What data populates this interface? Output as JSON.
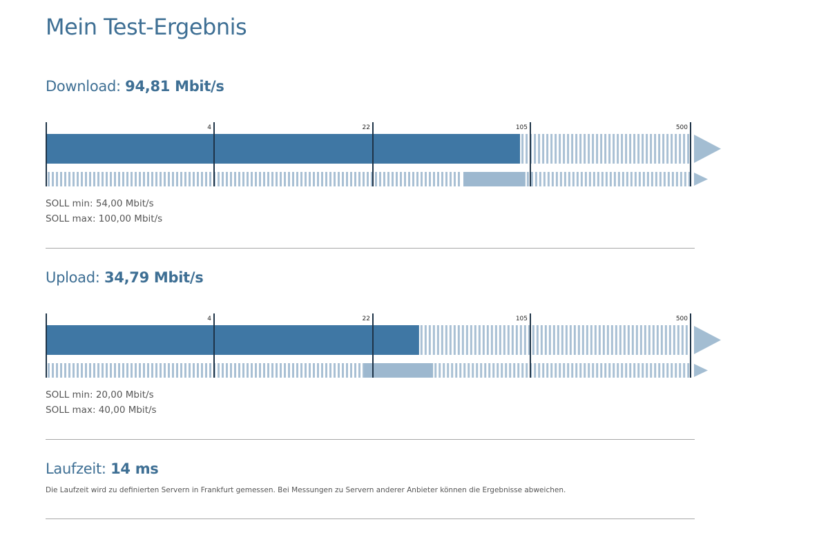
{
  "title": "Mein Test-Ergebnis",
  "download": {
    "label": "Download:",
    "value": "94,81 Mbit/s",
    "speed_mbit": 94.81,
    "soll_min_mbit": 54,
    "soll_max_mbit": 100,
    "soll_min_text": "SOLL min: 54,00 Mbit/s",
    "soll_max_text": "SOLL max: 100,00 Mbit/s",
    "ticks": [
      "4",
      "22",
      "105",
      "500"
    ]
  },
  "upload": {
    "label": "Upload:",
    "value": "34,79 Mbit/s",
    "speed_mbit": 34.79,
    "soll_min_mbit": 20,
    "soll_max_mbit": 40,
    "soll_min_text": "SOLL min: 20,00 Mbit/s",
    "soll_max_text": "SOLL max: 40,00 Mbit/s",
    "ticks": [
      "4",
      "22",
      "105",
      "500"
    ]
  },
  "latency": {
    "label": "Laufzeit:",
    "value": "14 ms",
    "note": "Die Laufzeit wird zu definierten Servern in Frankfurt gemessen. Bei Messungen zu Servern anderer Anbieter können die Ergebnisse abweichen."
  },
  "colors": {
    "accent": "#3e6f94",
    "bar_fill": "#3f77a4",
    "range_fill": "#9db8cf",
    "stripe": "#a9c0d4",
    "arrow": "#a3bdd2",
    "tick": "#1e3347"
  }
}
